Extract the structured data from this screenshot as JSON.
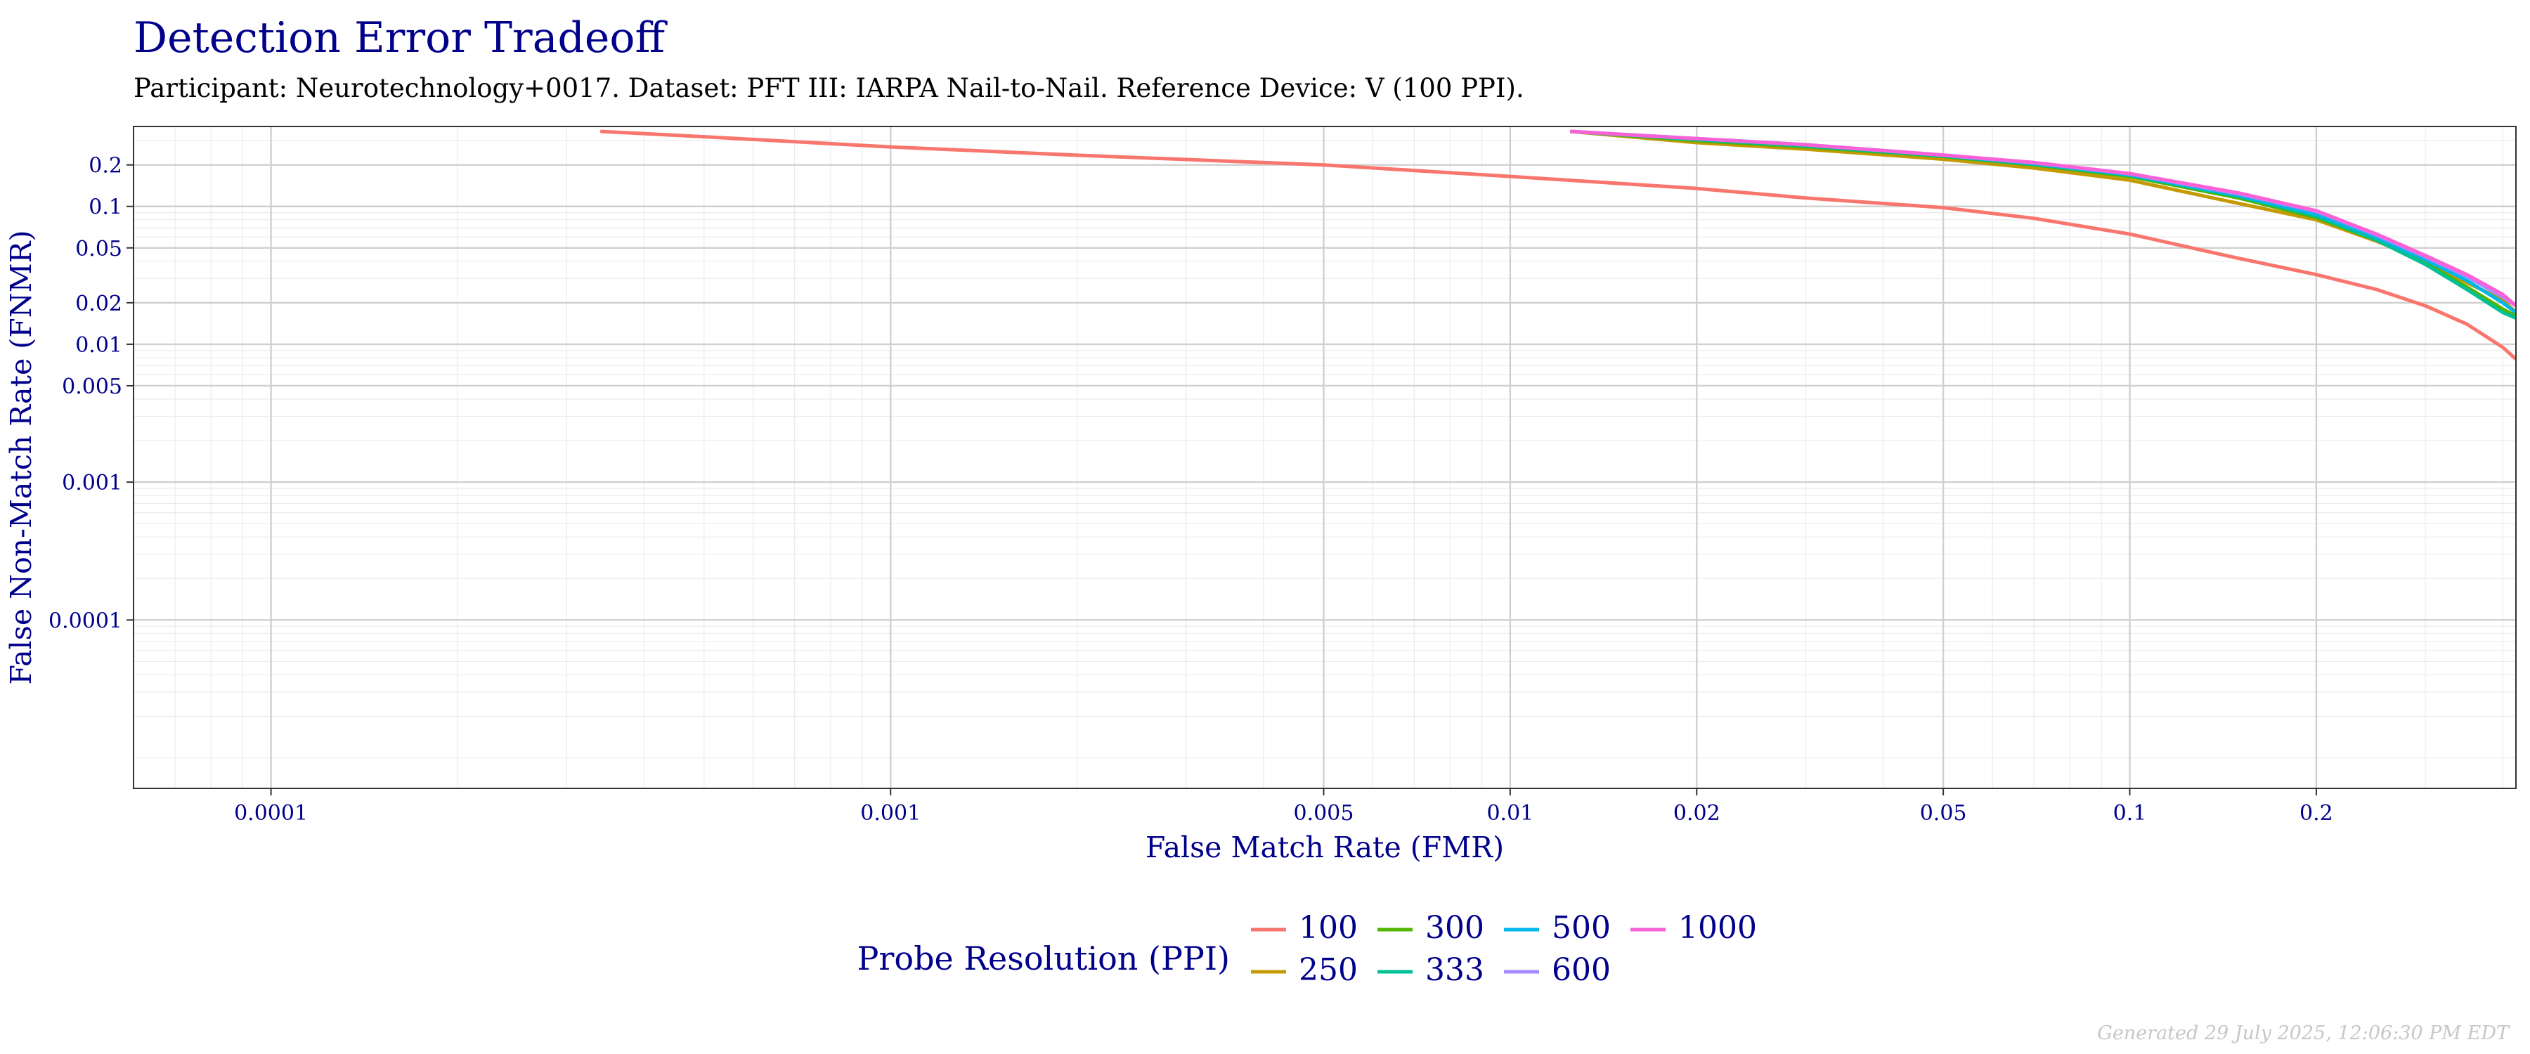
{
  "chart_data": {
    "type": "line",
    "title": "Detection Error Tradeoff",
    "subtitle": "Participant: Neurotechnology+0017. Dataset: PFT III: IARPA Nail-to-Nail. Reference Device: V (100 PPI).",
    "xlabel": "False Match Rate (FMR)",
    "ylabel": "False Non-Match Rate (FNMR)",
    "x_scale": "log",
    "y_scale": "log",
    "xlim": [
      6e-05,
      0.42
    ],
    "ylim": [
      6e-06,
      0.38
    ],
    "x_ticks": [
      0.0001,
      0.001,
      0.005,
      0.01,
      0.02,
      0.05,
      0.1,
      0.2
    ],
    "x_tick_labels": [
      "0.0001",
      "0.001",
      "0.005",
      "0.01",
      "0.02",
      "0.05",
      "0.1",
      "0.2"
    ],
    "y_ticks": [
      0.2,
      0.1,
      0.05,
      0.02,
      0.01,
      0.005,
      0.001,
      0.0001
    ],
    "y_tick_labels": [
      "0.2",
      "0.1",
      "0.05",
      "0.02",
      "0.01",
      "0.005",
      "0.001",
      "0.0001"
    ],
    "legend_title": "Probe Resolution (PPI)",
    "legend_position": "bottom",
    "series": [
      {
        "name": "100",
        "color": "#F8766D",
        "x": [
          0.00034,
          0.0005,
          0.001,
          0.002,
          0.005,
          0.01,
          0.02,
          0.03,
          0.05,
          0.07,
          0.1,
          0.15,
          0.2,
          0.25,
          0.3,
          0.35,
          0.4,
          0.42
        ],
        "y": [
          0.35,
          0.32,
          0.27,
          0.235,
          0.2,
          0.165,
          0.135,
          0.115,
          0.098,
          0.082,
          0.063,
          0.042,
          0.032,
          0.025,
          0.019,
          0.014,
          0.0095,
          0.0078
        ]
      },
      {
        "name": "250",
        "color": "#C49A00",
        "x": [
          0.0125,
          0.02,
          0.03,
          0.05,
          0.07,
          0.1,
          0.15,
          0.2,
          0.25,
          0.3,
          0.35,
          0.4,
          0.42
        ],
        "y": [
          0.35,
          0.29,
          0.26,
          0.22,
          0.19,
          0.155,
          0.105,
          0.08,
          0.056,
          0.04,
          0.028,
          0.021,
          0.017
        ]
      },
      {
        "name": "300",
        "color": "#53B400",
        "x": [
          0.0125,
          0.02,
          0.03,
          0.05,
          0.07,
          0.1,
          0.15,
          0.2,
          0.25,
          0.3,
          0.35,
          0.4,
          0.42
        ],
        "y": [
          0.35,
          0.3,
          0.27,
          0.23,
          0.2,
          0.165,
          0.115,
          0.083,
          0.057,
          0.039,
          0.026,
          0.018,
          0.016
        ]
      },
      {
        "name": "333",
        "color": "#00C094",
        "x": [
          0.0125,
          0.02,
          0.03,
          0.05,
          0.07,
          0.1,
          0.15,
          0.2,
          0.25,
          0.3,
          0.35,
          0.4,
          0.42
        ],
        "y": [
          0.35,
          0.305,
          0.275,
          0.232,
          0.202,
          0.168,
          0.118,
          0.085,
          0.057,
          0.038,
          0.025,
          0.017,
          0.0155
        ]
      },
      {
        "name": "500",
        "color": "#00B6EB",
        "x": [
          0.0125,
          0.02,
          0.03,
          0.05,
          0.07,
          0.1,
          0.15,
          0.2,
          0.25,
          0.3,
          0.35,
          0.4,
          0.42
        ],
        "y": [
          0.35,
          0.31,
          0.28,
          0.235,
          0.205,
          0.17,
          0.12,
          0.088,
          0.06,
          0.041,
          0.029,
          0.02,
          0.017
        ]
      },
      {
        "name": "600",
        "color": "#A58AFF",
        "x": [
          0.0125,
          0.02,
          0.03,
          0.05,
          0.07,
          0.1,
          0.15,
          0.2,
          0.25,
          0.3,
          0.35,
          0.4,
          0.42
        ],
        "y": [
          0.35,
          0.31,
          0.28,
          0.235,
          0.207,
          0.172,
          0.123,
          0.092,
          0.062,
          0.043,
          0.031,
          0.022,
          0.019
        ]
      },
      {
        "name": "1000",
        "color": "#FB61D7",
        "x": [
          0.0125,
          0.02,
          0.03,
          0.05,
          0.07,
          0.1,
          0.15,
          0.2,
          0.25,
          0.3,
          0.35,
          0.4,
          0.42
        ],
        "y": [
          0.35,
          0.31,
          0.28,
          0.236,
          0.208,
          0.173,
          0.125,
          0.093,
          0.063,
          0.044,
          0.032,
          0.023,
          0.019
        ]
      }
    ]
  },
  "footer": "Generated 29 July 2025, 12:06:30 PM EDT"
}
